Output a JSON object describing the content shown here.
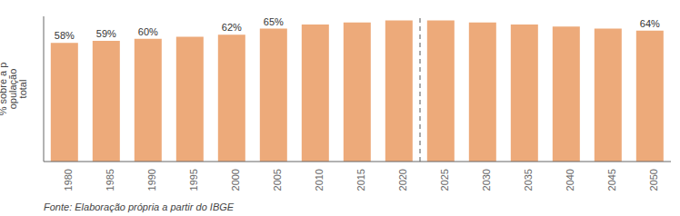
{
  "chart_data": {
    "type": "bar",
    "ylabel": "% sobre a p\nopulação\ntotal",
    "source": "Fonte: Elaboração própria a partir do IBGE",
    "categories": [
      "1980",
      "1985",
      "1990",
      "1995",
      "2000",
      "2005",
      "2010",
      "2015",
      "2020",
      "2025",
      "2030",
      "2035",
      "2040",
      "2045",
      "2050"
    ],
    "values": [
      58,
      59,
      60,
      61,
      62,
      65,
      67,
      68,
      69,
      69,
      68,
      67,
      66,
      65,
      64
    ],
    "value_labels": [
      "58%",
      "59%",
      "60%",
      null,
      "62%",
      "65%",
      null,
      null,
      null,
      null,
      null,
      null,
      null,
      null,
      "64%"
    ],
    "data_labels": true,
    "color": "#EDAA7A",
    "ylim": [
      0,
      71
    ],
    "tick_labels": "x",
    "grid": false,
    "annotations": [
      {
        "type": "vline",
        "between": [
          "2020",
          "2025"
        ],
        "line_style": "dashed"
      }
    ]
  }
}
